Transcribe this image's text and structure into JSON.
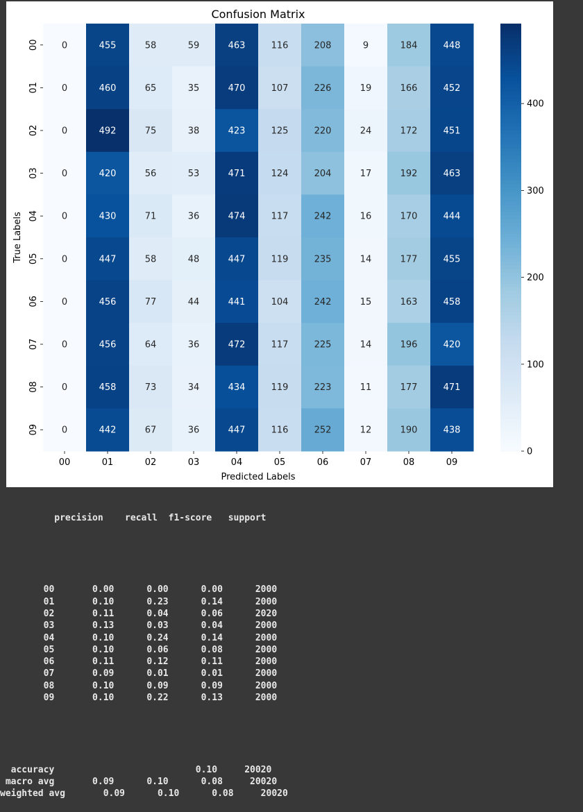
{
  "chart_data": {
    "type": "heatmap",
    "title": "Confusion Matrix",
    "xlabel": "Predicted Labels",
    "ylabel": "True Labels",
    "x_labels": [
      "00",
      "01",
      "02",
      "03",
      "04",
      "05",
      "06",
      "07",
      "08",
      "09"
    ],
    "y_labels": [
      "00",
      "01",
      "02",
      "03",
      "04",
      "05",
      "06",
      "07",
      "08",
      "09"
    ],
    "values": [
      [
        0,
        455,
        58,
        59,
        463,
        116,
        208,
        9,
        184,
        448
      ],
      [
        0,
        460,
        65,
        35,
        470,
        107,
        226,
        19,
        166,
        452
      ],
      [
        0,
        492,
        75,
        38,
        423,
        125,
        220,
        24,
        172,
        451
      ],
      [
        0,
        420,
        56,
        53,
        471,
        124,
        204,
        17,
        192,
        463
      ],
      [
        0,
        430,
        71,
        36,
        474,
        117,
        242,
        16,
        170,
        444
      ],
      [
        0,
        447,
        58,
        48,
        447,
        119,
        235,
        14,
        177,
        455
      ],
      [
        0,
        456,
        77,
        44,
        441,
        104,
        242,
        15,
        163,
        458
      ],
      [
        0,
        456,
        64,
        36,
        472,
        117,
        225,
        14,
        196,
        420
      ],
      [
        0,
        458,
        73,
        34,
        434,
        119,
        223,
        11,
        177,
        471
      ],
      [
        0,
        442,
        67,
        36,
        447,
        116,
        252,
        12,
        190,
        438
      ]
    ],
    "colorbar": {
      "min": 0,
      "max": 492,
      "ticks": [
        0,
        100,
        200,
        300,
        400
      ],
      "colormap": "Blues"
    }
  },
  "report": {
    "header": "          precision    recall  f1-score   support",
    "rows": [
      "        00       0.00      0.00      0.00      2000",
      "        01       0.10      0.23      0.14      2000",
      "        02       0.11      0.04      0.06      2020",
      "        03       0.13      0.03      0.04      2000",
      "        04       0.10      0.24      0.14      2000",
      "        05       0.10      0.06      0.08      2000",
      "        06       0.11      0.12      0.11      2000",
      "        07       0.09      0.01      0.01      2000",
      "        08       0.10      0.09      0.09      2000",
      "        09       0.10      0.22      0.13      2000"
    ],
    "summary": [
      "  accuracy                          0.10     20020",
      " macro avg       0.09      0.10      0.08     20020",
      "weighted avg       0.09      0.10      0.08     20020"
    ]
  },
  "colors": {
    "figure_background": "#ffffff",
    "output_background": "#383838",
    "output_text": "#e8e8e8"
  }
}
